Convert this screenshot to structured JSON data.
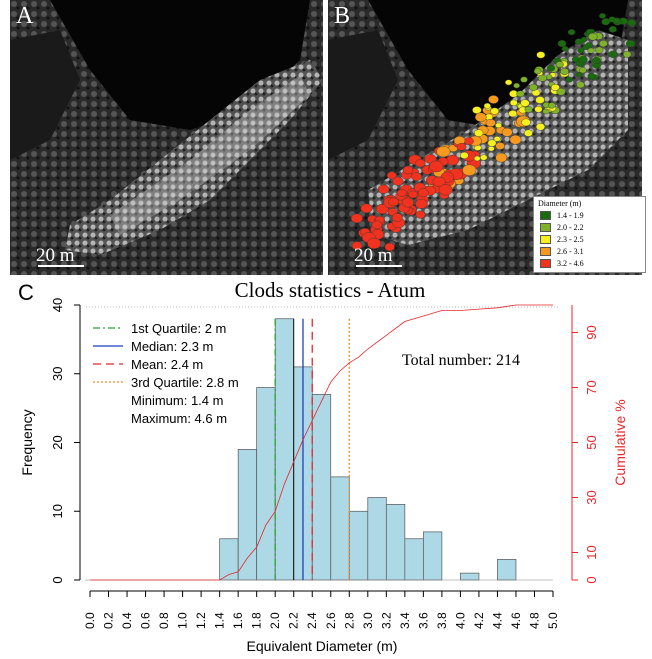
{
  "panel_a": {
    "letter": "A",
    "scale_text": "20 m"
  },
  "panel_b": {
    "letter": "B",
    "scale_text": "20 m",
    "legend": {
      "title": "Diameter (m)",
      "items": [
        {
          "label": "1.4 - 1.9",
          "color": "#1a6b0e"
        },
        {
          "label": "2.0 - 2.2",
          "color": "#7fb22a"
        },
        {
          "label": "2.3 - 2.5",
          "color": "#f5f01e"
        },
        {
          "label": "2.6 - 3.1",
          "color": "#f59a1e"
        },
        {
          "label": "3.2 - 4.6",
          "color": "#f0321e"
        }
      ]
    }
  },
  "panel_c": {
    "letter": "C"
  },
  "chart_data": {
    "type": "bar",
    "title": "Clods statistics - Atum",
    "xlabel": "Equivalent Diameter (m)",
    "ylabel": "Frequency",
    "y2label": "Cumulative %",
    "xlim": [
      0,
      5
    ],
    "ylim": [
      0,
      40
    ],
    "y2lim": [
      0,
      100
    ],
    "bin_width": 0.2,
    "bins_start": [
      1.4,
      1.6,
      1.8,
      2.0,
      2.2,
      2.4,
      2.6,
      2.8,
      3.0,
      3.2,
      3.4,
      3.6,
      3.8,
      4.0,
      4.2,
      4.4
    ],
    "frequencies": [
      6,
      19,
      28,
      38,
      31,
      27,
      15,
      10,
      12,
      11,
      6,
      7,
      0,
      1,
      0,
      3
    ],
    "x_ticks": [
      "0.0",
      "0.2",
      "0.4",
      "0.6",
      "0.8",
      "1.0",
      "1.2",
      "1.4",
      "1.6",
      "1.8",
      "2.0",
      "2.2",
      "2.4",
      "2.6",
      "2.8",
      "3.0",
      "3.2",
      "3.4",
      "3.6",
      "3.8",
      "4.0",
      "4.2",
      "4.4",
      "4.6",
      "4.8",
      "5.0"
    ],
    "y_ticks": [
      "0",
      "10",
      "20",
      "30",
      "40"
    ],
    "y2_ticks": [
      "0",
      "10",
      "30",
      "50",
      "70",
      "90"
    ],
    "lines": [
      {
        "label": "1st Quartile: 2 m",
        "x": 2.0,
        "color": "#2ca02c",
        "style": "dashdot"
      },
      {
        "label": "Median: 2.3 m",
        "x": 2.3,
        "color": "#1f3fbf",
        "style": "solid"
      },
      {
        "label": "Mean: 2.4 m",
        "x": 2.4,
        "color": "#e8262a",
        "style": "dashed"
      },
      {
        "label": "3rd Quartile: 2.8 m",
        "x": 2.8,
        "color": "#f08a1e",
        "style": "dotted"
      }
    ],
    "extra_legend": [
      "Minimum: 1.4 m",
      "Maximum: 4.6 m"
    ],
    "annotation": "Total number: 214",
    "cumulative_color": "#e8262a",
    "bar_color": "#add8e6",
    "cumulative": {
      "x": [
        0,
        1.4,
        1.5,
        1.6,
        1.7,
        1.8,
        1.9,
        2.0,
        2.1,
        2.2,
        2.3,
        2.4,
        2.5,
        2.6,
        2.7,
        2.8,
        2.9,
        3.0,
        3.2,
        3.4,
        3.6,
        3.8,
        4.0,
        4.2,
        4.4,
        4.6,
        5.0
      ],
      "y": [
        0,
        0,
        2,
        3,
        8,
        12,
        20,
        25,
        35,
        43,
        51,
        58,
        65,
        72,
        76,
        79,
        81,
        84,
        89,
        94,
        96,
        98,
        98,
        98.5,
        99,
        100,
        100
      ]
    },
    "grid": false,
    "legend_position": "top-left"
  }
}
